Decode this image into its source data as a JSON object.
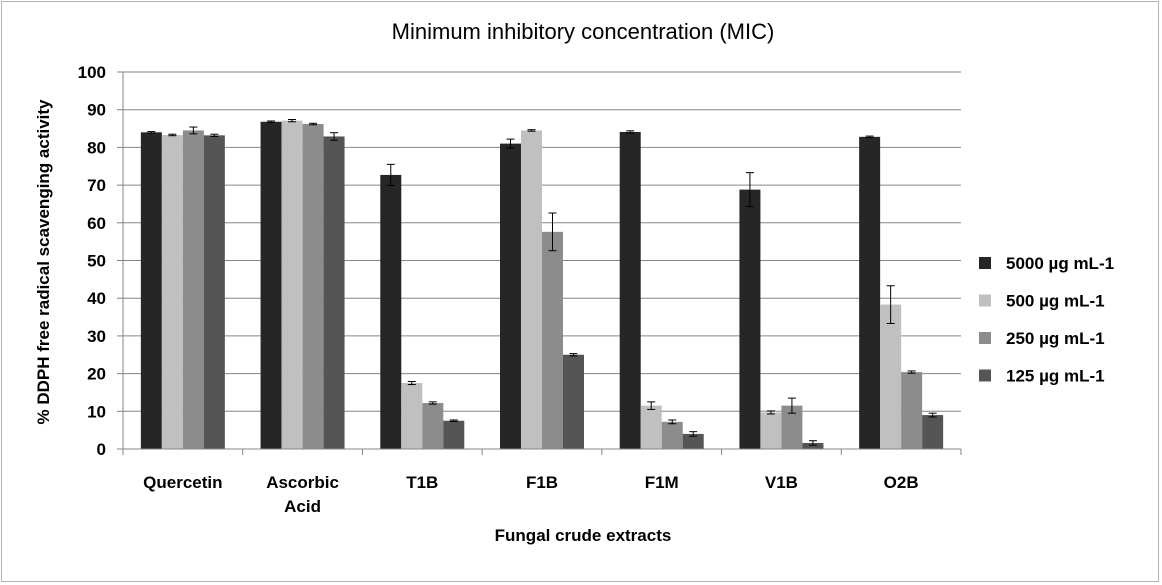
{
  "chart_data": {
    "type": "bar",
    "title": "Minimum inhibitory concentration (MIC)",
    "xlabel": "Fungal crude extracts",
    "ylabel": "% DDPH free radical scavenging activity",
    "ylim": [
      0,
      100
    ],
    "yticks": [
      0,
      10,
      20,
      30,
      40,
      50,
      60,
      70,
      80,
      90,
      100
    ],
    "grid": true,
    "legend_position": "right",
    "categories": [
      [
        "Quercetin"
      ],
      [
        "Ascorbic",
        "Acid"
      ],
      [
        "T1B"
      ],
      [
        "F1B"
      ],
      [
        "F1M"
      ],
      [
        "V1B"
      ],
      [
        "O2B"
      ]
    ],
    "series": [
      {
        "name": "5000 µg mL-1",
        "color": "#262626",
        "values": [
          84.0,
          86.8,
          72.7,
          81.0,
          84.1,
          68.8,
          82.8
        ],
        "errors": [
          0.2,
          0.2,
          2.8,
          1.2,
          0.3,
          4.5,
          0.2
        ]
      },
      {
        "name": "500 µg mL-1",
        "color": "#c0c0c0",
        "values": [
          83.3,
          87.1,
          17.5,
          84.5,
          11.5,
          9.7,
          38.3
        ],
        "errors": [
          0.2,
          0.3,
          0.4,
          0.2,
          1.0,
          0.4,
          5.0
        ]
      },
      {
        "name": "250 µg mL-1",
        "color": "#8c8c8c",
        "values": [
          84.5,
          86.2,
          12.2,
          57.6,
          7.2,
          11.5,
          20.4
        ],
        "errors": [
          0.9,
          0.2,
          0.3,
          5.0,
          0.5,
          2.0,
          0.3
        ]
      },
      {
        "name": "125 µg mL-1",
        "color": "#555555",
        "values": [
          83.2,
          82.9,
          7.5,
          25.0,
          4.0,
          1.6,
          9.0
        ],
        "errors": [
          0.3,
          1.0,
          0.2,
          0.3,
          0.6,
          0.6,
          0.5
        ]
      }
    ]
  }
}
